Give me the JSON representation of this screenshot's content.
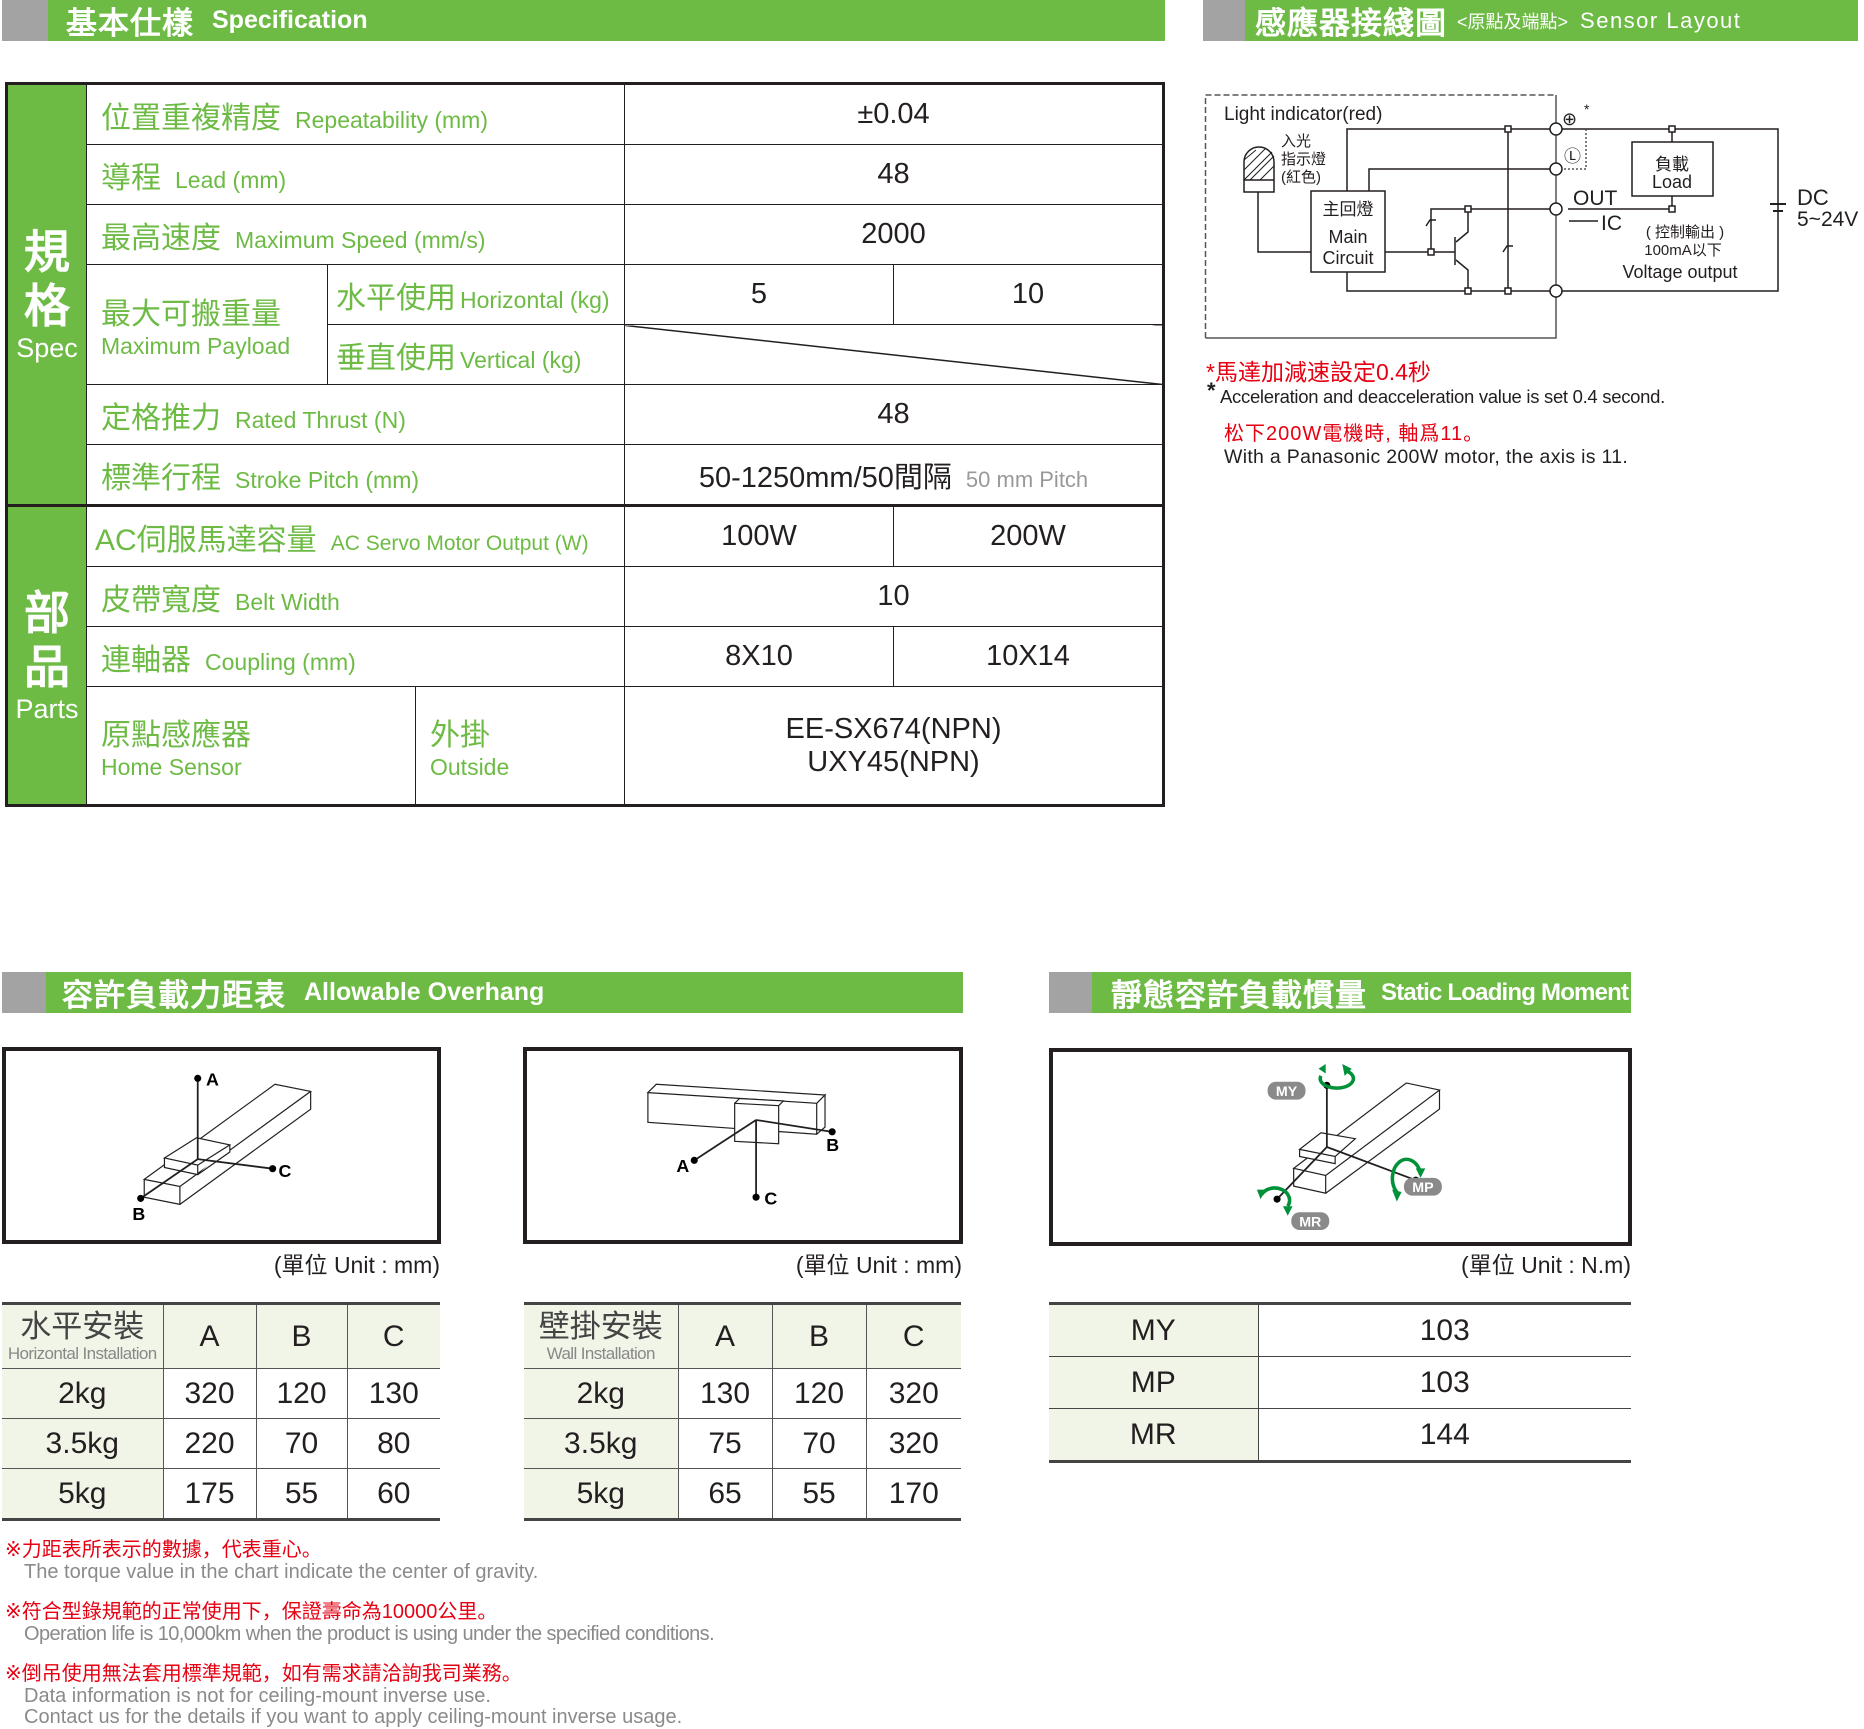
{
  "spec_header": {
    "zh": "基本仕樣",
    "en": "Specification"
  },
  "sensor_header": {
    "zh": "感應器接綫圖",
    "sub": "<原點及端點>",
    "en": "Sensor Layout"
  },
  "spec": {
    "group_spec": {
      "zh1": "規",
      "zh2": "格",
      "en": "Spec"
    },
    "group_parts": {
      "zh1": "部",
      "zh2": "品",
      "en": "Parts"
    },
    "repeatability": {
      "zh": "位置重複精度",
      "en": "Repeatability (mm)",
      "value": "±0.04"
    },
    "lead": {
      "zh": "導程",
      "en": "Lead (mm)",
      "value": "48"
    },
    "max_speed": {
      "zh": "最高速度",
      "en": "Maximum Speed (mm/s)",
      "value": "2000"
    },
    "payload": {
      "zh": "最大可搬重量",
      "en": "Maximum Payload",
      "horizontal": {
        "zh": "水平使用",
        "en": "Horizontal (kg)",
        "values": [
          "5",
          "10"
        ]
      },
      "vertical": {
        "zh": "垂直使用",
        "en": "Vertical (kg)"
      }
    },
    "rated_thrust": {
      "zh": "定格推力",
      "en": "Rated Thrust (N)",
      "value": "48"
    },
    "stroke": {
      "zh": "標準行程",
      "en": "Stroke Pitch (mm)",
      "value": "50-1250mm/50間隔",
      "pitch": "50 mm Pitch"
    },
    "motor": {
      "zh": "AC伺服馬達容量",
      "en": "AC Servo Motor Output (W)",
      "values": [
        "100W",
        "200W"
      ]
    },
    "belt": {
      "zh": "皮帶寬度",
      "en": "Belt Width",
      "value": "10"
    },
    "coupling": {
      "zh": "連軸器",
      "en": "Coupling (mm)",
      "values": [
        "8X10",
        "10X14"
      ]
    },
    "home_sensor": {
      "zh": "原點感應器",
      "en": "Home Sensor",
      "mount_zh": "外掛",
      "mount_en": "Outside",
      "values": [
        "EE-SX674(NPN)",
        "UXY45(NPN)"
      ]
    }
  },
  "sensor": {
    "light_indicator": "Light indicator(red)",
    "bulb_label": [
      "入光",
      "指示燈",
      "(紅色)"
    ],
    "main_circuit": [
      "主回燈",
      "Main",
      "Circuit"
    ],
    "out": "OUT",
    "ic": "IC",
    "load": [
      "負載",
      "Load"
    ],
    "control": [
      "( 控制輸出 )",
      "100mA以下",
      "Voltage output"
    ],
    "dc": [
      "DC",
      "5~24V"
    ],
    "plus": "⊕",
    "star": "*",
    "l_mark": "Ⓛ",
    "notes": {
      "red1": "*馬達加減速設定0.4秒",
      "star": "*",
      "en1": "Acceleration and deacceleration value is set 0.4 second.",
      "red2": "松下200W電機時, 軸爲11。",
      "en2": "With a Panasonic 200W motor, the axis is 11."
    }
  },
  "overhang_header": {
    "zh": "容許負載力距表",
    "en": "Allowable Overhang"
  },
  "moment_header": {
    "zh": "靜態容許負載慣量",
    "en": "Static Loading Moment"
  },
  "unit_mm": "(單位 Unit : mm)",
  "unit_nm": "(單位 Unit : N.m)",
  "diagram_labels": {
    "a": "A",
    "b": "B",
    "c": "C",
    "my": "MY",
    "mp": "MP",
    "mr": "MR"
  },
  "horizontal_table": {
    "title_zh": "水平安裝",
    "title_en": "Horizontal Installation",
    "columns": [
      "A",
      "B",
      "C"
    ],
    "rows": [
      [
        "2kg",
        "320",
        "120",
        "130"
      ],
      [
        "3.5kg",
        "220",
        "70",
        "80"
      ],
      [
        "5kg",
        "175",
        "55",
        "60"
      ]
    ]
  },
  "wall_table": {
    "title_zh": "壁掛安裝",
    "title_en": "Wall Installation",
    "columns": [
      "A",
      "B",
      "C"
    ],
    "rows": [
      [
        "2kg",
        "130",
        "120",
        "320"
      ],
      [
        "3.5kg",
        "75",
        "70",
        "320"
      ],
      [
        "5kg",
        "65",
        "55",
        "170"
      ]
    ]
  },
  "moment_table": {
    "rows": [
      [
        "MY",
        "103"
      ],
      [
        "MP",
        "103"
      ],
      [
        "MR",
        "144"
      ]
    ]
  },
  "footnotes": [
    {
      "zh": "※力距表所表示的數據，代表重心。",
      "en": [
        "The torque value in the chart indicate the center of gravity."
      ]
    },
    {
      "zh": "※符合型錄規範的正常使用下，保證壽命為10000公里。",
      "en": [
        "Operation life is 10,000km when the product is using under the specified conditions."
      ]
    },
    {
      "zh": "※倒吊使用無法套用標準規範，如有需求請洽詢我司業務。",
      "en": [
        "Data information is not for ceiling-mount inverse use.",
        "Contact us for the details if you want to apply ceiling-mount inverse usage."
      ]
    }
  ],
  "colors": {
    "green": "#6dbb45",
    "gray": "#a3a3a3",
    "red": "#e60012",
    "arrow_green": "#00913a",
    "light_green": "#f1f5e8"
  }
}
